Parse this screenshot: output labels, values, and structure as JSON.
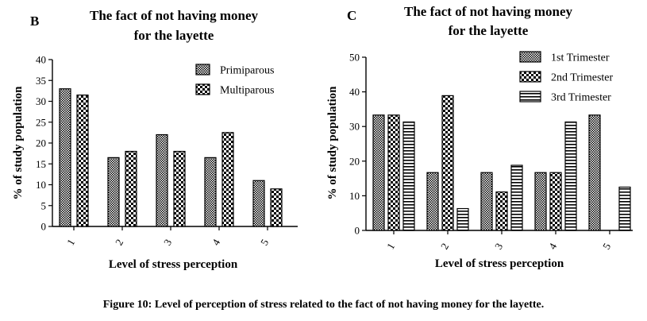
{
  "caption": "Figure 10: Level of perception of stress related to the fact of not having money for the layette.",
  "chart_data": [
    {
      "panel": "B",
      "type": "bar",
      "title": [
        "The fact of not having money",
        "for the layette"
      ],
      "xlabel": "Level of stress perception",
      "ylabel": "% of study population",
      "categories": [
        "1",
        "2",
        "3",
        "4",
        "5"
      ],
      "ylim": [
        0,
        40
      ],
      "yticks": [
        0,
        5,
        10,
        15,
        20,
        25,
        30,
        35,
        40
      ],
      "legend_position": "top-right",
      "grid": false,
      "series": [
        {
          "name": "Primiparous",
          "pattern": "dense-check",
          "values": [
            33,
            16.5,
            22,
            16.5,
            11
          ]
        },
        {
          "name": "Multiparous",
          "pattern": "check",
          "values": [
            31.5,
            18,
            18,
            22.5,
            9
          ]
        }
      ]
    },
    {
      "panel": "C",
      "type": "bar",
      "title": [
        "The fact of not having money",
        "for the layette"
      ],
      "xlabel": "Level of stress perception",
      "ylabel": "% of study population",
      "categories": [
        "1",
        "2",
        "3",
        "4",
        "5"
      ],
      "ylim": [
        0,
        50
      ],
      "yticks": [
        0,
        10,
        20,
        30,
        40,
        50
      ],
      "legend_position": "top-right",
      "grid": false,
      "series": [
        {
          "name": "1st Trimester",
          "pattern": "dense-check",
          "values": [
            33.3,
            16.7,
            16.7,
            16.7,
            33.3
          ]
        },
        {
          "name": "2nd Trimester",
          "pattern": "check",
          "values": [
            33.3,
            38.9,
            11.1,
            16.7,
            0
          ]
        },
        {
          "name": "3rd Trimester",
          "pattern": "horizontal",
          "values": [
            31.3,
            6.3,
            18.8,
            31.3,
            12.5
          ]
        }
      ]
    }
  ]
}
